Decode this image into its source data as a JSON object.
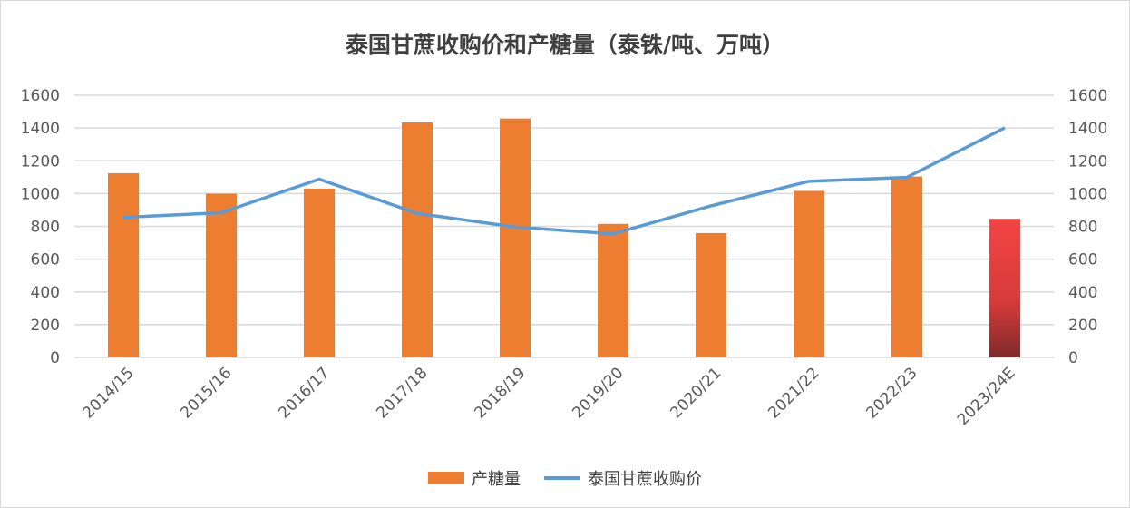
{
  "chart_data": {
    "type": "bar+line",
    "title": "泰国甘蔗收购价和产糖量（泰铢/吨、万吨）",
    "categories": [
      "2014/15",
      "2015/16",
      "2016/17",
      "2017/18",
      "2018/19",
      "2019/20",
      "2020/21",
      "2021/22",
      "2022/23",
      "2023/24E"
    ],
    "series": [
      {
        "name": "产糖量",
        "type": "bar",
        "axis": "left",
        "color": "#ed7d31",
        "highlight_color": "#f44444",
        "values": [
          1124,
          999,
          1030,
          1434,
          1458,
          815,
          759,
          1016,
          1104,
          846
        ]
      },
      {
        "name": "泰国甘蔗收购价",
        "type": "line",
        "axis": "right",
        "color": "#5b9bd5",
        "values": [
          855,
          883,
          1088,
          879,
          796,
          754,
          925,
          1075,
          1099,
          1401
        ]
      }
    ],
    "ylim": [
      0,
      1600
    ],
    "y2lim": [
      0,
      1600
    ],
    "yticks": [
      "0",
      "200",
      "400",
      "600",
      "800",
      "1000",
      "1200",
      "1400",
      "1600"
    ],
    "grid": true,
    "legend": "bottom"
  }
}
